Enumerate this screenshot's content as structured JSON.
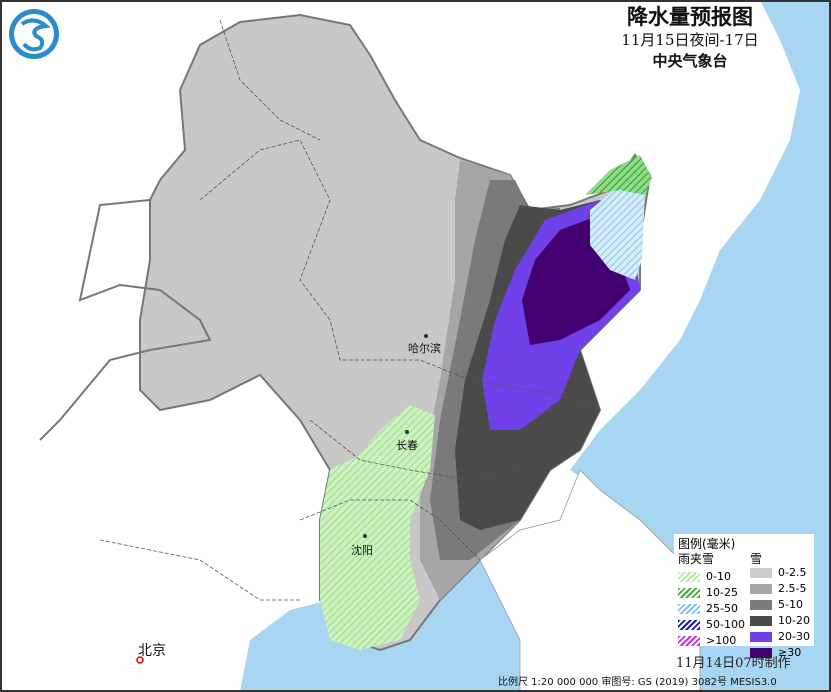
{
  "header": {
    "title": "降水量预报图",
    "period": "11月15日夜间-17日",
    "agency": "中央气象台"
  },
  "cities": [
    {
      "name": "哈尔滨"
    },
    {
      "name": "长春"
    },
    {
      "name": "沈阳"
    },
    {
      "name": "北京"
    }
  ],
  "legend": {
    "title": "图例(毫米)",
    "sleet_header": "雨夹雪",
    "snow_header": "雪",
    "sleet": [
      {
        "label": "0-10",
        "color": "#b5eaa0"
      },
      {
        "label": "10-25",
        "color": "#3fae3f"
      },
      {
        "label": "25-50",
        "color": "#7fc4ee"
      },
      {
        "label": "50-100",
        "color": "#1a1aa0"
      },
      {
        "label": ">100",
        "color": "#d030d8"
      }
    ],
    "snow": [
      {
        "label": "0-2.5",
        "color": "#cdcdcd"
      },
      {
        "label": "2.5-5",
        "color": "#a6a6a6"
      },
      {
        "label": "5-10",
        "color": "#7a7a7a"
      },
      {
        "label": "10-20",
        "color": "#4a4a4a"
      },
      {
        "label": "20-30",
        "color": "#7040e8"
      },
      {
        "label": "≥30",
        "color": "#420070"
      }
    ]
  },
  "made_time": "11月14日07时制作",
  "footer": "比例尺 1:20 000 000  审图号: GS (2019) 3082号 MESIS3.0",
  "colors": {
    "sea": "#a8d6f2",
    "land": "#ffffff",
    "border": "#666666"
  }
}
